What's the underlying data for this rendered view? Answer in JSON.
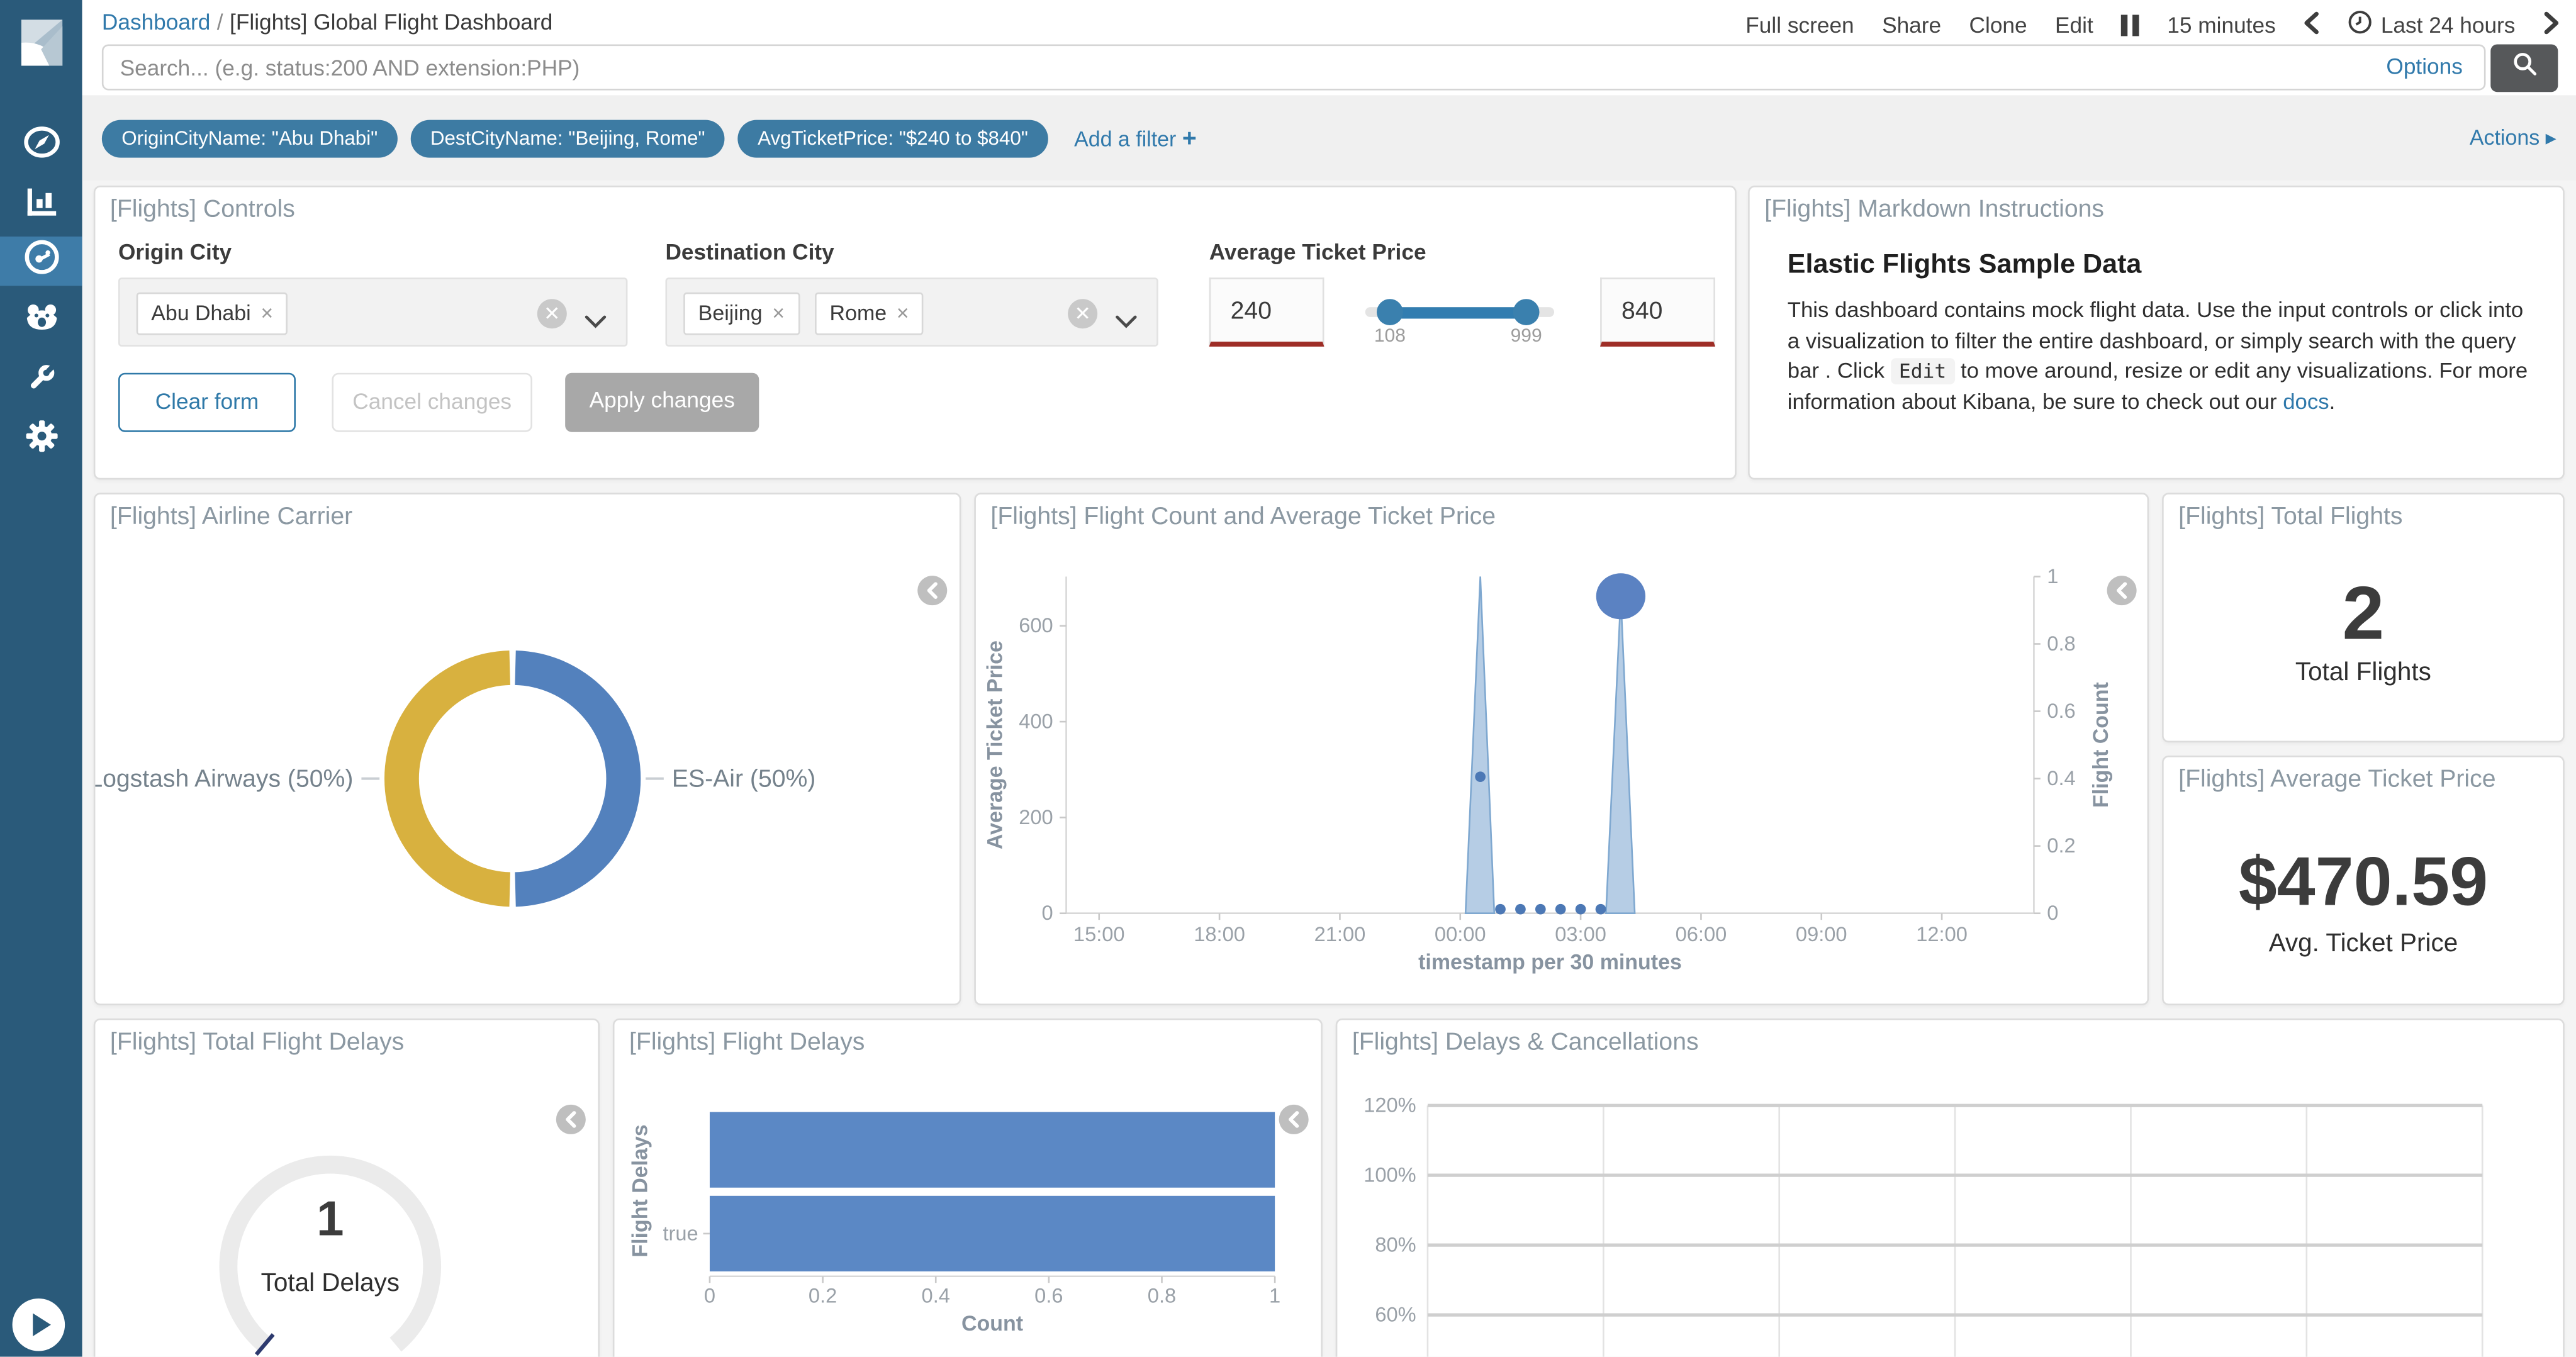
{
  "colors": {
    "accent_blue": "#3079ab",
    "pill_blue": "#3d7ba3",
    "sidebar": "#2a5a7a",
    "sidebar_active": "#3e7ca8",
    "panel_title_gray": "#8b98a2",
    "bar_blue": "#5b88c5",
    "donut_blue": "#5381bd",
    "donut_yellow": "#d8b13f",
    "area_fill": "#a9c4e1",
    "area_stroke": "#7fa8d0",
    "bubble_blue": "#5b82c2",
    "invalid_red": "#9e2d26",
    "slider_blue": "#3a80ae",
    "search_button_gray": "#56585a"
  },
  "sidebar": {
    "icons": [
      "kibana-logo",
      "discover-compass",
      "visualize-bar-chart",
      "dashboard-gauge",
      "timelion",
      "dev-tools-wrench",
      "management-gear",
      "expand-play"
    ],
    "active_item": "dashboard"
  },
  "nav": {
    "breadcrumb": {
      "root": "Dashboard",
      "separator": "/",
      "current": "[Flights] Global Flight Dashboard"
    },
    "menu": [
      "Full screen",
      "Share",
      "Clone",
      "Edit"
    ],
    "refresh_interval": "15 minutes",
    "time_range": "Last 24 hours"
  },
  "search": {
    "placeholder": "Search... (e.g. status:200 AND extension:PHP)",
    "options_label": "Options"
  },
  "filters": {
    "pills": [
      "OriginCityName: \"Abu Dhabi\"",
      "DestCityName: \"Beijing, Rome\"",
      "AvgTicketPrice: \"$240 to $840\""
    ],
    "add_label": "Add a filter",
    "actions_label": "Actions"
  },
  "panels": {
    "controls": {
      "title": "[Flights] Controls",
      "origin": {
        "label": "Origin City",
        "tags": [
          "Abu Dhabi"
        ]
      },
      "destination": {
        "label": "Destination City",
        "tags": [
          "Beijing",
          "Rome"
        ]
      },
      "price": {
        "label": "Average Ticket Price",
        "min": "240",
        "max": "840",
        "range_min": "108",
        "range_max": "999"
      },
      "buttons": {
        "clear": "Clear form",
        "cancel": "Cancel changes",
        "apply": "Apply changes"
      }
    },
    "markdown": {
      "title": "[Flights] Markdown Instructions",
      "heading": "Elastic Flights Sample Data",
      "body_1": "This dashboard contains mock flight data. Use the input controls or click into a visualization to filter the entire dashboard, or simply search with the query bar . Click",
      "code": "Edit",
      "body_2": "to move around, resize or edit any visualizations. For more information about Kibana, be sure to check out our",
      "link": "docs",
      "body_3": "."
    },
    "airline_carrier": {
      "title": "[Flights] Airline Carrier",
      "chart_data": {
        "type": "pie",
        "donut": true,
        "slices": [
          {
            "label": "ES-Air (50%)",
            "value": 50,
            "color": "#5381bd"
          },
          {
            "label": "Logstash Airways (50%)",
            "value": 50,
            "color": "#d8b13f"
          }
        ]
      }
    },
    "flight_count": {
      "title": "[Flights] Flight Count and Average Ticket Price",
      "chart_data": {
        "type": "area",
        "x_ticks": [
          "15:00",
          "18:00",
          "21:00",
          "00:00",
          "03:00",
          "06:00",
          "09:00",
          "12:00"
        ],
        "xlabel": "timestamp per 30 minutes",
        "left_axis": {
          "label": "Average Ticket Price",
          "ticks": [
            "0",
            "200",
            "400",
            "600"
          ],
          "max": 700
        },
        "right_axis": {
          "label": "Flight Count",
          "ticks": [
            "0",
            "0.2",
            "0.4",
            "0.6",
            "0.8",
            "1"
          ],
          "max": 1
        },
        "series": [
          {
            "name": "Average Ticket Price",
            "type": "area-spikes",
            "fill": "#a9c4e1",
            "stroke": "#7fa8d0",
            "points": [
              {
                "x": "00:30",
                "y": 710
              },
              {
                "x": "04:00",
                "y": 660
              }
            ]
          },
          {
            "name": "Average Ticket Price points",
            "type": "dots",
            "color": "#4c78b5",
            "points": [
              {
                "x": "00:30",
                "y": 285
              },
              {
                "x": "01:00",
                "y": 0
              },
              {
                "x": "01:30",
                "y": 0
              },
              {
                "x": "02:00",
                "y": 0
              },
              {
                "x": "02:30",
                "y": 0
              },
              {
                "x": "03:00",
                "y": 0
              },
              {
                "x": "03:30",
                "y": 0
              }
            ]
          },
          {
            "name": "Flight Count",
            "type": "bubble",
            "color": "#5b82c2",
            "points": [
              {
                "x": "04:00",
                "y": 1
              }
            ]
          }
        ]
      }
    },
    "total_flights": {
      "title": "[Flights] Total Flights",
      "value": "2",
      "label": "Total Flights"
    },
    "avg_ticket_price": {
      "title": "[Flights] Average Ticket Price",
      "value": "$470.59",
      "label": "Avg. Ticket Price"
    },
    "total_flight_delays": {
      "title": "[Flights] Total Flight Delays",
      "value": "1",
      "label": "Total Delays",
      "chart_data": {
        "type": "gauge",
        "value": 1,
        "label": "Total Delays"
      }
    },
    "flight_delays": {
      "title": "[Flights] Flight Delays",
      "chart_data": {
        "type": "bar",
        "orientation": "horizontal",
        "color": "#5b88c5",
        "ylabel": "Flight Delays",
        "xlabel": "Count",
        "x_ticks": [
          "0",
          "0.2",
          "0.4",
          "0.6",
          "0.8",
          "1"
        ],
        "bars": [
          {
            "label": "",
            "value": 1
          },
          {
            "label": "true",
            "value": 1
          }
        ]
      }
    },
    "delays_cancellations": {
      "title": "[Flights] Delays & Cancellations",
      "chart_data": {
        "type": "line",
        "grid": true,
        "y_ticks": [
          "120%",
          "100%",
          "80%",
          "60%"
        ],
        "series": []
      }
    }
  }
}
